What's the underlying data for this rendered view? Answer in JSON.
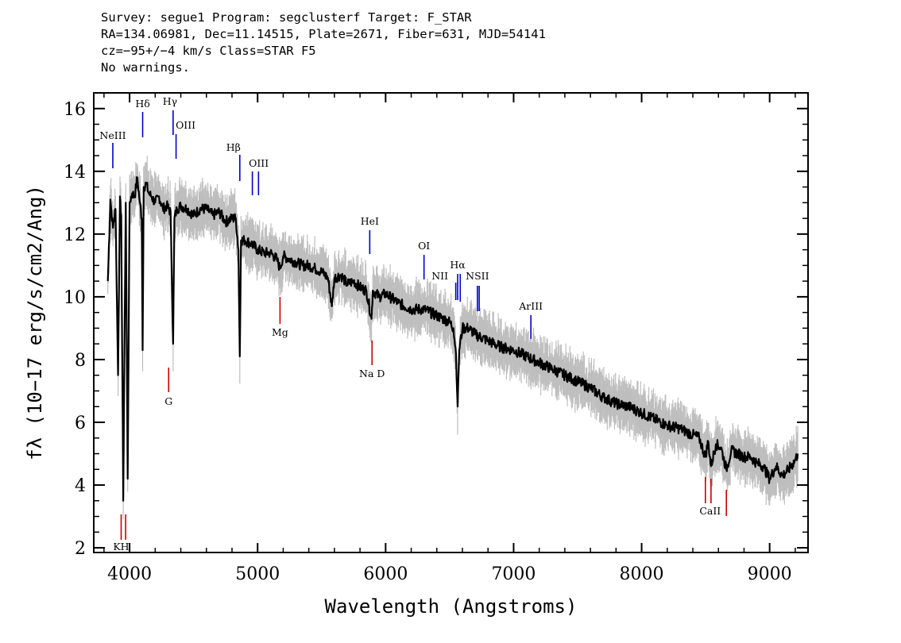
{
  "header": {
    "line1": "Survey: segue1 Program: segclusterf Target: F_STAR",
    "line2": "RA=134.06981, Dec=11.14515, Plate=2671, Fiber=631, MJD=54141",
    "line3": "cz=−95+/−4 km/s Class=STAR F5",
    "line4": "No warnings."
  },
  "chart_data": {
    "type": "line",
    "xlabel": "Wavelength (Angstroms)",
    "ylabel": "fλ (10−17 erg/s/cm2/Ang)",
    "xlim": [
      3720,
      9300
    ],
    "ylim": [
      1.85,
      16.5
    ],
    "x_ticks": [
      4000,
      5000,
      6000,
      7000,
      8000,
      9000
    ],
    "y_ticks": [
      2,
      4,
      6,
      8,
      10,
      12,
      14,
      16
    ],
    "grid": false,
    "colors": {
      "flux": "#000000",
      "error_band": "#bebebe",
      "emission_lines": "#0000cc",
      "absorption_lines": "#cc0000"
    },
    "series": [
      {
        "x": [
          3830,
          3850,
          3870,
          3890,
          3910,
          3925,
          3935,
          3950,
          3970,
          3985,
          4000,
          4020,
          4040,
          4060,
          4080,
          4095,
          4102,
          4110,
          4130,
          4150,
          4170,
          4200,
          4230,
          4260,
          4290,
          4320,
          4340,
          4350,
          4370,
          4400,
          4450,
          4500,
          4550,
          4600,
          4650,
          4700,
          4750,
          4800,
          4830,
          4850,
          4861,
          4870,
          4900,
          4950,
          5000,
          5050,
          5100,
          5150,
          5175,
          5200,
          5250,
          5300,
          5350,
          5400,
          5450,
          5500,
          5550,
          5580,
          5600,
          5650,
          5700,
          5750,
          5800,
          5850,
          5890,
          5900,
          5950,
          6000,
          6100,
          6200,
          6300,
          6400,
          6500,
          6530,
          6550,
          6563,
          6575,
          6600,
          6650,
          6700,
          6800,
          6900,
          7000,
          7100,
          7200,
          7300,
          7400,
          7500,
          7600,
          7700,
          7800,
          7900,
          8000,
          8100,
          8200,
          8300,
          8400,
          8450,
          8498,
          8520,
          8542,
          8580,
          8620,
          8662,
          8700,
          8750,
          8800,
          8850,
          8900,
          8950,
          9000,
          9050,
          9100,
          9150,
          9200,
          9220
        ],
        "y": [
          10.5,
          13.1,
          12.2,
          12.8,
          7.5,
          13.2,
          12.6,
          3.5,
          13.0,
          4.2,
          13.0,
          13.3,
          13.2,
          13.8,
          13.0,
          12.5,
          8.3,
          13.5,
          13.6,
          13.3,
          13.2,
          13.0,
          13.2,
          12.8,
          12.9,
          12.7,
          8.5,
          12.5,
          12.8,
          12.9,
          12.8,
          12.6,
          12.8,
          12.8,
          12.6,
          12.7,
          12.4,
          12.5,
          12.5,
          11.5,
          8.1,
          11.8,
          11.8,
          11.7,
          11.5,
          11.4,
          11.4,
          11.2,
          10.9,
          11.3,
          11.2,
          11.1,
          11.0,
          11.0,
          10.9,
          10.8,
          10.6,
          9.7,
          10.6,
          10.7,
          10.4,
          10.5,
          10.3,
          10.2,
          9.3,
          10.2,
          10.0,
          10.1,
          9.8,
          9.6,
          9.6,
          9.4,
          9.2,
          9.0,
          8.2,
          6.5,
          8.3,
          9.0,
          9.0,
          8.8,
          8.6,
          8.4,
          8.3,
          8.1,
          7.9,
          7.7,
          7.5,
          7.3,
          7.1,
          6.8,
          6.6,
          6.5,
          6.3,
          6.1,
          5.9,
          5.8,
          5.6,
          5.5,
          4.9,
          5.4,
          4.6,
          5.3,
          5.2,
          4.5,
          5.1,
          5.0,
          4.9,
          4.9,
          4.7,
          4.6,
          4.2,
          4.6,
          4.3,
          4.5,
          4.8,
          5.0
        ]
      }
    ],
    "line_markers": [
      {
        "label": "NeIII",
        "x": 3869,
        "kind": "emission"
      },
      {
        "label": "Hδ",
        "x": 4102,
        "kind": "emission"
      },
      {
        "label": "Hγ",
        "x": 4340,
        "kind": "emission"
      },
      {
        "label": "OIII",
        "x": 4363,
        "kind": "emission"
      },
      {
        "label": "Hβ",
        "x": 4861,
        "kind": "emission"
      },
      {
        "label": "OIII",
        "x": 4959,
        "kind": "emission"
      },
      {
        "label": "",
        "x": 5007,
        "kind": "emission"
      },
      {
        "label": "HeI",
        "x": 5876,
        "kind": "emission"
      },
      {
        "label": "OI",
        "x": 6300,
        "kind": "emission"
      },
      {
        "label": "NII",
        "x": 6548,
        "kind": "emission"
      },
      {
        "label": "Hα",
        "x": 6563,
        "kind": "emission"
      },
      {
        "label": "",
        "x": 6583,
        "kind": "emission"
      },
      {
        "label": "NSII",
        "x": 6717,
        "kind": "emission"
      },
      {
        "label": "",
        "x": 6731,
        "kind": "emission"
      },
      {
        "label": "ArIII",
        "x": 7135,
        "kind": "emission"
      },
      {
        "label": "KH",
        "x": 3934,
        "kind": "absorption"
      },
      {
        "label": "",
        "x": 3969,
        "kind": "absorption"
      },
      {
        "label": "G",
        "x": 4305,
        "kind": "absorption"
      },
      {
        "label": "Mg",
        "x": 5175,
        "kind": "absorption"
      },
      {
        "label": "Na D",
        "x": 5894,
        "kind": "absorption"
      },
      {
        "label": "CaII",
        "x": 8498,
        "kind": "absorption"
      },
      {
        "label": "",
        "x": 8542,
        "kind": "absorption"
      },
      {
        "label": "",
        "x": 8662,
        "kind": "absorption"
      }
    ]
  }
}
